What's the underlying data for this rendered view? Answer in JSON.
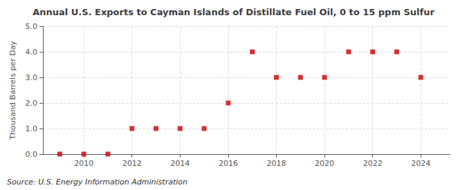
{
  "chart_data": {
    "type": "scatter",
    "title": "Annual U.S. Exports to Cayman Islands of Distillate Fuel Oil, 0 to 15 ppm Sulfur",
    "ylabel": "Thousand Barrels per Day",
    "annotation": "Source: U.S. Energy Information Administration",
    "x": [
      2009,
      2010,
      2011,
      2012,
      2013,
      2014,
      2015,
      2016,
      2017,
      2018,
      2019,
      2020,
      2021,
      2022,
      2023,
      2024
    ],
    "values": [
      0.0,
      0.0,
      0.0,
      1.0,
      1.0,
      1.0,
      1.0,
      2.0,
      4.0,
      3.0,
      3.0,
      3.0,
      4.0,
      4.0,
      4.0,
      3.0
    ],
    "color": "#cc0000",
    "marker": "square",
    "xlim": [
      2008.3,
      2025.2
    ],
    "xticks": [
      2010,
      2012,
      2014,
      2016,
      2018,
      2020,
      2022,
      2024
    ],
    "ylim": [
      0.0,
      5.0
    ],
    "yticks": [
      {
        "value": 0,
        "label": "0.0"
      },
      {
        "value": 1,
        "label": "1.0"
      },
      {
        "value": 2,
        "label": "2.0"
      },
      {
        "value": 3,
        "label": "3.0"
      },
      {
        "value": 4,
        "label": "4.0"
      },
      {
        "value": 5,
        "label": "5.0"
      }
    ],
    "grid": true
  }
}
